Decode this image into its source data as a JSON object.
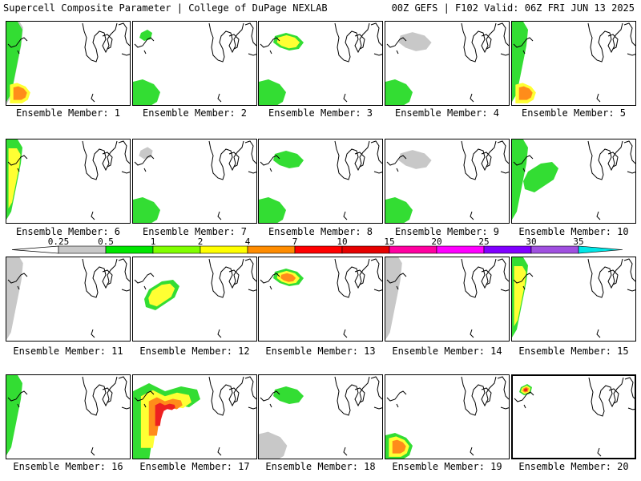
{
  "header": {
    "left": "Supercell Composite Parameter | College of DuPage NEXLAB",
    "right": "00Z GEFS | F102 Valid: 06Z FRI JUN 13 2025"
  },
  "panels": [
    {
      "label": "Ensemble Member: 1",
      "member": 1,
      "shading": [
        {
          "level": "gray",
          "shape": "west-edge"
        },
        {
          "level": "green",
          "shape": "west-edge"
        },
        {
          "level": "yellow",
          "shape": "southwest"
        },
        {
          "level": "orange",
          "shape": "southwest"
        }
      ]
    },
    {
      "label": "Ensemble Member: 2",
      "member": 2,
      "shading": [
        {
          "level": "green",
          "shape": "lake-michigan-north"
        },
        {
          "level": "green",
          "shape": "southwest"
        }
      ]
    },
    {
      "label": "Ensemble Member: 3",
      "member": 3,
      "shading": [
        {
          "level": "green",
          "shape": "wisconsin"
        },
        {
          "level": "yellow",
          "shape": "wisconsin"
        },
        {
          "level": "green",
          "shape": "southwest"
        }
      ]
    },
    {
      "label": "Ensemble Member: 4",
      "member": 4,
      "shading": [
        {
          "level": "gray",
          "shape": "wisconsin"
        },
        {
          "level": "green",
          "shape": "southwest"
        }
      ]
    },
    {
      "label": "Ensemble Member: 5",
      "member": 5,
      "shading": [
        {
          "level": "green",
          "shape": "west-edge"
        },
        {
          "level": "yellow",
          "shape": "southwest"
        },
        {
          "level": "orange",
          "shape": "southwest"
        }
      ]
    },
    {
      "label": "Ensemble Member: 6",
      "member": 6,
      "shading": [
        {
          "level": "green",
          "shape": "west-edge"
        },
        {
          "level": "yellow",
          "shape": "west-edge"
        }
      ]
    },
    {
      "label": "Ensemble Member: 7",
      "member": 7,
      "shading": [
        {
          "level": "green",
          "shape": "southwest"
        },
        {
          "level": "gray",
          "shape": "lake-michigan-north"
        }
      ]
    },
    {
      "label": "Ensemble Member: 8",
      "member": 8,
      "shading": [
        {
          "level": "green",
          "shape": "wisconsin"
        },
        {
          "level": "green",
          "shape": "southwest"
        }
      ]
    },
    {
      "label": "Ensemble Member: 9",
      "member": 9,
      "shading": [
        {
          "level": "gray",
          "shape": "wisconsin"
        },
        {
          "level": "green",
          "shape": "southwest"
        }
      ]
    },
    {
      "label": "Ensemble Member: 10",
      "member": 10,
      "shading": [
        {
          "level": "green",
          "shape": "west-edge"
        },
        {
          "level": "green",
          "shape": "iowa"
        }
      ]
    },
    {
      "label": "Ensemble Member: 11",
      "member": 11,
      "shading": [
        {
          "level": "gray",
          "shape": "west-edge"
        }
      ]
    },
    {
      "label": "Ensemble Member: 12",
      "member": 12,
      "shading": [
        {
          "level": "green",
          "shape": "iowa"
        },
        {
          "level": "yellow",
          "shape": "iowa"
        }
      ]
    },
    {
      "label": "Ensemble Member: 13",
      "member": 13,
      "shading": [
        {
          "level": "green",
          "shape": "wisconsin"
        },
        {
          "level": "yellow",
          "shape": "wisconsin"
        },
        {
          "level": "orange",
          "shape": "wisconsin"
        }
      ]
    },
    {
      "label": "Ensemble Member: 14",
      "member": 14,
      "shading": [
        {
          "level": "gray",
          "shape": "west-edge"
        }
      ]
    },
    {
      "label": "Ensemble Member: 15",
      "member": 15,
      "shading": [
        {
          "level": "green",
          "shape": "west-edge"
        },
        {
          "level": "yellow",
          "shape": "west-edge"
        }
      ]
    },
    {
      "label": "Ensemble Member: 16",
      "member": 16,
      "shading": [
        {
          "level": "green",
          "shape": "west-edge"
        }
      ]
    },
    {
      "label": "Ensemble Member: 17",
      "member": 17,
      "shading": [
        {
          "level": "green",
          "shape": "big-west"
        },
        {
          "level": "yellow",
          "shape": "big-west"
        },
        {
          "level": "orange",
          "shape": "big-west"
        },
        {
          "level": "red",
          "shape": "big-west"
        }
      ]
    },
    {
      "label": "Ensemble Member: 18",
      "member": 18,
      "shading": [
        {
          "level": "green",
          "shape": "wisconsin"
        },
        {
          "level": "gray",
          "shape": "southwest"
        }
      ]
    },
    {
      "label": "Ensemble Member: 19",
      "member": 19,
      "shading": [
        {
          "level": "green",
          "shape": "southwest"
        },
        {
          "level": "yellow",
          "shape": "southwest"
        },
        {
          "level": "orange",
          "shape": "southwest"
        }
      ]
    },
    {
      "label": "Ensemble Member: 20",
      "member": 20,
      "shading": [
        {
          "level": "green",
          "shape": "lake-michigan-north"
        },
        {
          "level": "yellow",
          "shape": "lake-michigan-north"
        },
        {
          "level": "orange",
          "shape": "lake-michigan-north"
        },
        {
          "level": "red",
          "shape": "lake-michigan-north"
        }
      ]
    }
  ],
  "colorbar": {
    "thresholds": [
      "0.25",
      "0.5",
      "1",
      "2",
      "4",
      "7",
      "10",
      "15",
      "20",
      "25",
      "30",
      "35"
    ],
    "colors": [
      "#c8c8c8",
      "#00e600",
      "#80ff00",
      "#ffff00",
      "#ff8c00",
      "#ff0000",
      "#e60000",
      "#ff00a0",
      "#ff00ff",
      "#8000ff",
      "#a050e0",
      "#00e6e6"
    ]
  },
  "colors": {
    "gray": "#c8c8c8",
    "green": "#33dd33",
    "yellow": "#ffff33",
    "orange": "#ff8c1a",
    "red": "#ee2020"
  }
}
